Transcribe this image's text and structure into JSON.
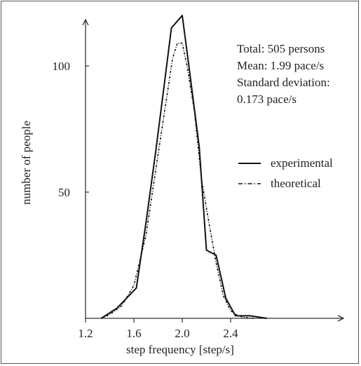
{
  "chart_data": {
    "type": "line",
    "title": "",
    "xlabel": "step frequency [step/s]",
    "ylabel": "number of people",
    "xlim": [
      1.2,
      2.8
    ],
    "ylim": [
      0,
      122
    ],
    "x_ticks": [
      1.2,
      1.6,
      2.0,
      2.4
    ],
    "x_tick_labels": [
      "1.2",
      "1.6",
      "2.0",
      "2.4"
    ],
    "y_ticks": [
      50,
      100
    ],
    "y_tick_labels": [
      "50",
      "100"
    ],
    "annotations": [
      "Total: 505 persons",
      "Mean: 1.99 pace/s",
      "Standard deviation:",
      "0.173 pace/s"
    ],
    "legend_position": "right",
    "series": [
      {
        "name": "experimental",
        "style": "solid",
        "x": [
          1.33,
          1.46,
          1.56,
          1.62,
          1.7,
          1.78,
          1.86,
          1.91,
          2.0,
          2.06,
          2.14,
          2.2,
          2.28,
          2.36,
          2.44,
          2.56,
          2.7
        ],
        "y": [
          0,
          4,
          9,
          12,
          38,
          66,
          96,
          115,
          120,
          98,
          68,
          27,
          25,
          8,
          1,
          1,
          0
        ]
      },
      {
        "name": "theoretical",
        "style": "dash-dot",
        "x": [
          1.33,
          1.4,
          1.5,
          1.6,
          1.7,
          1.8,
          1.86,
          1.92,
          1.96,
          2.0,
          2.04,
          2.1,
          2.16,
          2.22,
          2.28,
          2.34,
          2.4,
          2.46,
          2.52,
          2.6
        ],
        "y": [
          0,
          1.5,
          5,
          13,
          33,
          65,
          84,
          103,
          109,
          109,
          100,
          82,
          55,
          38,
          22,
          9,
          3,
          1,
          0.3,
          0
        ]
      }
    ]
  }
}
